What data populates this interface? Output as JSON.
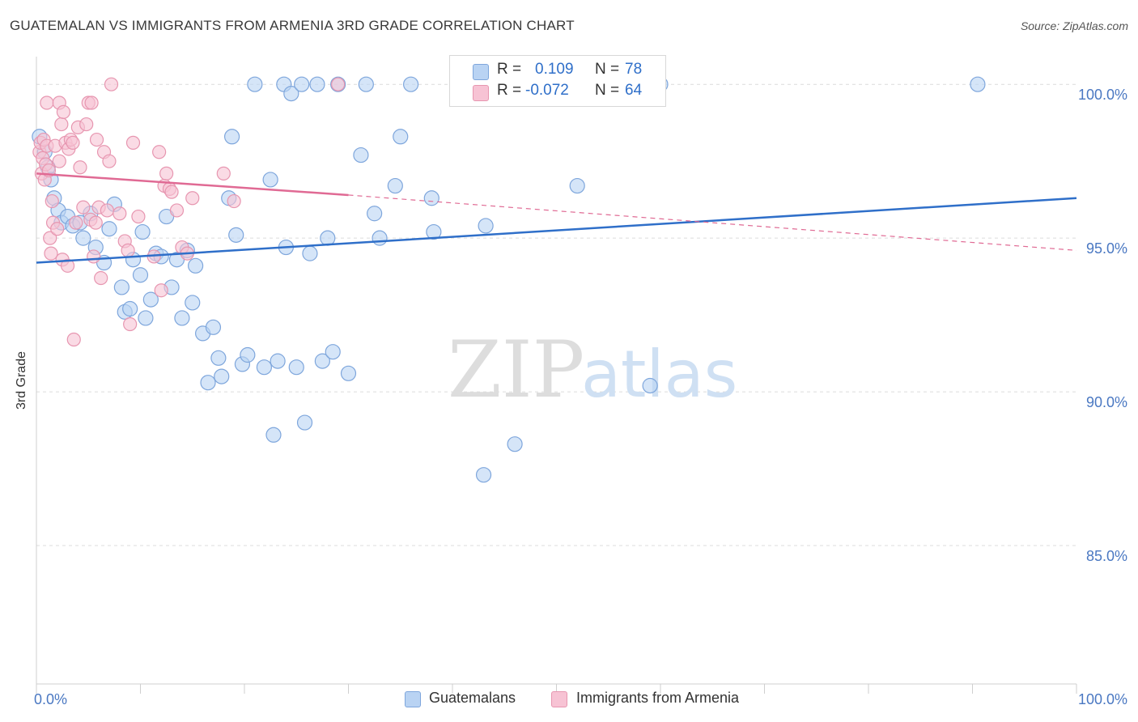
{
  "title": "GUATEMALAN VS IMMIGRANTS FROM ARMENIA 3RD GRADE CORRELATION CHART",
  "source": "Source: ZipAtlas.com",
  "watermark": {
    "zip": "ZIP",
    "atlas": "atlas"
  },
  "colors": {
    "blue_fill": "#b9d3f3",
    "blue_stroke": "#7ea6dc",
    "blue_line": "#2f6fc9",
    "pink_fill": "#f7c3d4",
    "pink_stroke": "#e796b0",
    "pink_line": "#e06a94",
    "axis_text": "#4a78c2",
    "grid": "#dcdcdc"
  },
  "stats": [
    {
      "r_label": "R =",
      "r_value": "0.109",
      "n_label": "N =",
      "n_value": "78",
      "color": "blue"
    },
    {
      "r_label": "R =",
      "r_value": "-0.072",
      "n_label": "N =",
      "n_value": "64",
      "color": "pink"
    }
  ],
  "legend": [
    {
      "label": "Guatemalans",
      "color": "blue"
    },
    {
      "label": "Immigrants from Armenia",
      "color": "pink"
    }
  ],
  "chart_data": {
    "type": "scatter",
    "title": "GUATEMALAN VS IMMIGRANTS FROM ARMENIA 3RD GRADE CORRELATION CHART",
    "xlabel": "",
    "ylabel": "3rd Grade",
    "xlim": [
      0,
      100
    ],
    "ylim": [
      80.5,
      100.9
    ],
    "x_tick_labels": [
      "0.0%",
      "100.0%"
    ],
    "y_ticks": [
      85,
      90,
      95,
      100
    ],
    "y_tick_labels": [
      "85.0%",
      "90.0%",
      "95.0%",
      "100.0%"
    ],
    "grid": true,
    "legend_position": "bottom-center",
    "series": [
      {
        "name": "Guatemalans",
        "color": "blue",
        "trend": {
          "x": [
            0,
            100
          ],
          "y": [
            94.2,
            96.3
          ]
        },
        "points": [
          [
            0.3,
            98.3
          ],
          [
            0.8,
            97.8
          ],
          [
            1.1,
            97.3
          ],
          [
            1.4,
            96.9
          ],
          [
            1.7,
            96.3
          ],
          [
            2.1,
            95.9
          ],
          [
            2.4,
            95.5
          ],
          [
            3.0,
            95.7
          ],
          [
            3.5,
            95.4
          ],
          [
            4.2,
            95.5
          ],
          [
            4.5,
            95.0
          ],
          [
            5.2,
            95.8
          ],
          [
            5.7,
            94.7
          ],
          [
            6.5,
            94.2
          ],
          [
            7.0,
            95.3
          ],
          [
            7.5,
            96.1
          ],
          [
            8.2,
            93.4
          ],
          [
            8.5,
            92.6
          ],
          [
            9.0,
            92.7
          ],
          [
            9.3,
            94.3
          ],
          [
            10.0,
            93.8
          ],
          [
            10.2,
            95.2
          ],
          [
            10.5,
            92.4
          ],
          [
            11.0,
            93.0
          ],
          [
            11.5,
            94.5
          ],
          [
            12.0,
            94.4
          ],
          [
            12.5,
            95.7
          ],
          [
            13.0,
            93.4
          ],
          [
            13.5,
            94.3
          ],
          [
            14.0,
            92.4
          ],
          [
            14.5,
            94.6
          ],
          [
            15.0,
            92.9
          ],
          [
            15.3,
            94.1
          ],
          [
            16.0,
            91.9
          ],
          [
            16.5,
            90.3
          ],
          [
            17.0,
            92.1
          ],
          [
            17.5,
            91.1
          ],
          [
            17.8,
            90.5
          ],
          [
            18.5,
            96.3
          ],
          [
            18.8,
            98.3
          ],
          [
            19.2,
            95.1
          ],
          [
            19.8,
            90.9
          ],
          [
            20.3,
            91.2
          ],
          [
            21.0,
            100.0
          ],
          [
            21.9,
            90.8
          ],
          [
            22.5,
            96.9
          ],
          [
            22.8,
            88.6
          ],
          [
            23.2,
            91.0
          ],
          [
            23.8,
            100.0
          ],
          [
            24.0,
            94.7
          ],
          [
            24.5,
            99.7
          ],
          [
            25.0,
            90.8
          ],
          [
            25.5,
            100.0
          ],
          [
            25.8,
            89.0
          ],
          [
            26.3,
            94.5
          ],
          [
            27.0,
            100.0
          ],
          [
            27.5,
            91.0
          ],
          [
            28.0,
            95.0
          ],
          [
            28.5,
            91.3
          ],
          [
            29.0,
            100.0
          ],
          [
            30.0,
            90.6
          ],
          [
            31.2,
            97.7
          ],
          [
            31.7,
            100.0
          ],
          [
            32.5,
            95.8
          ],
          [
            33.0,
            95.0
          ],
          [
            34.5,
            96.7
          ],
          [
            35.0,
            98.3
          ],
          [
            36.0,
            100.0
          ],
          [
            38.0,
            96.3
          ],
          [
            38.2,
            95.2
          ],
          [
            43.0,
            87.3
          ],
          [
            43.2,
            95.4
          ],
          [
            46.0,
            88.3
          ],
          [
            52.0,
            96.7
          ],
          [
            56.0,
            100.0
          ],
          [
            59.0,
            90.2
          ],
          [
            60.0,
            100.0
          ],
          [
            90.5,
            100.0
          ]
        ]
      },
      {
        "name": "Immigrants from Armenia",
        "color": "pink",
        "trend": {
          "x": [
            0,
            30
          ],
          "y": [
            97.1,
            96.4
          ]
        },
        "trend_dashed": {
          "x": [
            30,
            100
          ],
          "y": [
            96.4,
            94.6
          ]
        },
        "points": [
          [
            0.3,
            97.8
          ],
          [
            0.4,
            98.1
          ],
          [
            0.5,
            97.1
          ],
          [
            0.6,
            97.6
          ],
          [
            0.7,
            98.2
          ],
          [
            0.8,
            96.9
          ],
          [
            0.9,
            97.4
          ],
          [
            1.0,
            99.4
          ],
          [
            1.0,
            98.0
          ],
          [
            1.2,
            97.2
          ],
          [
            1.3,
            95.0
          ],
          [
            1.4,
            94.5
          ],
          [
            1.5,
            96.2
          ],
          [
            1.6,
            95.5
          ],
          [
            1.8,
            98.0
          ],
          [
            2.0,
            95.3
          ],
          [
            2.2,
            97.5
          ],
          [
            2.2,
            99.4
          ],
          [
            2.4,
            98.7
          ],
          [
            2.5,
            94.3
          ],
          [
            2.6,
            99.1
          ],
          [
            2.8,
            98.1
          ],
          [
            3.0,
            94.1
          ],
          [
            3.1,
            97.9
          ],
          [
            3.3,
            98.2
          ],
          [
            3.5,
            98.1
          ],
          [
            3.6,
            91.7
          ],
          [
            3.8,
            95.5
          ],
          [
            4.0,
            98.6
          ],
          [
            4.2,
            97.3
          ],
          [
            4.5,
            96.0
          ],
          [
            4.8,
            98.7
          ],
          [
            5.0,
            99.4
          ],
          [
            5.2,
            95.6
          ],
          [
            5.3,
            99.4
          ],
          [
            5.5,
            94.4
          ],
          [
            5.7,
            95.5
          ],
          [
            5.8,
            98.2
          ],
          [
            6.0,
            96.0
          ],
          [
            6.2,
            93.7
          ],
          [
            6.5,
            97.8
          ],
          [
            6.8,
            95.9
          ],
          [
            7.0,
            97.5
          ],
          [
            7.2,
            100.0
          ],
          [
            8.0,
            95.8
          ],
          [
            8.5,
            94.9
          ],
          [
            8.8,
            94.6
          ],
          [
            9.0,
            92.2
          ],
          [
            9.3,
            98.1
          ],
          [
            9.8,
            95.7
          ],
          [
            11.3,
            94.4
          ],
          [
            11.8,
            97.8
          ],
          [
            12.0,
            93.3
          ],
          [
            12.3,
            96.7
          ],
          [
            12.5,
            97.1
          ],
          [
            12.8,
            96.6
          ],
          [
            13.0,
            96.5
          ],
          [
            13.5,
            95.9
          ],
          [
            14.0,
            94.7
          ],
          [
            14.5,
            94.5
          ],
          [
            15.0,
            96.3
          ],
          [
            18.0,
            97.1
          ],
          [
            19.0,
            96.2
          ],
          [
            29.0,
            100.0
          ]
        ]
      }
    ]
  }
}
